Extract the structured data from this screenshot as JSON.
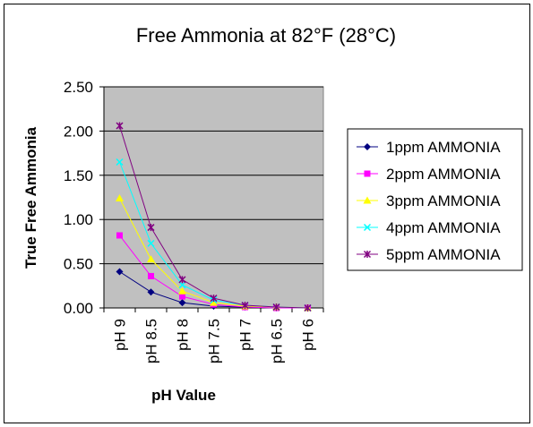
{
  "chart_data": {
    "type": "line",
    "title": "Free Ammonia at 82°F (28°C)",
    "xlabel": "pH Value",
    "ylabel": "True Free Ammonia",
    "categories": [
      "pH 9",
      "pH 8.5",
      "pH 8",
      "pH 7.5",
      "pH 7",
      "pH 6.5",
      "pH 6"
    ],
    "ylim": [
      0,
      2.5
    ],
    "yticks": [
      "0.00",
      "0.50",
      "1.00",
      "1.50",
      "2.00",
      "2.50"
    ],
    "grid": "horizontal",
    "legend": "right",
    "plot_background": "#c0c0c0",
    "series": [
      {
        "name": "1ppm AMMONIA",
        "color": "#000080",
        "marker": "diamond",
        "values": [
          0.41,
          0.18,
          0.06,
          0.02,
          0.01,
          0.0,
          0.0
        ]
      },
      {
        "name": "2ppm AMMONIA",
        "color": "#ff00ff",
        "marker": "square",
        "values": [
          0.82,
          0.36,
          0.13,
          0.04,
          0.01,
          0.0,
          0.0
        ]
      },
      {
        "name": "3ppm AMMONIA",
        "color": "#ffff00",
        "marker": "triangle",
        "values": [
          1.24,
          0.55,
          0.19,
          0.06,
          0.02,
          0.01,
          0.0
        ]
      },
      {
        "name": "4ppm AMMONIA",
        "color": "#00ffff",
        "marker": "x",
        "values": [
          1.65,
          0.73,
          0.26,
          0.09,
          0.03,
          0.01,
          0.0
        ]
      },
      {
        "name": "5ppm AMMONIA",
        "color": "#800080",
        "marker": "star",
        "values": [
          2.06,
          0.91,
          0.32,
          0.11,
          0.03,
          0.01,
          0.0
        ]
      }
    ]
  }
}
